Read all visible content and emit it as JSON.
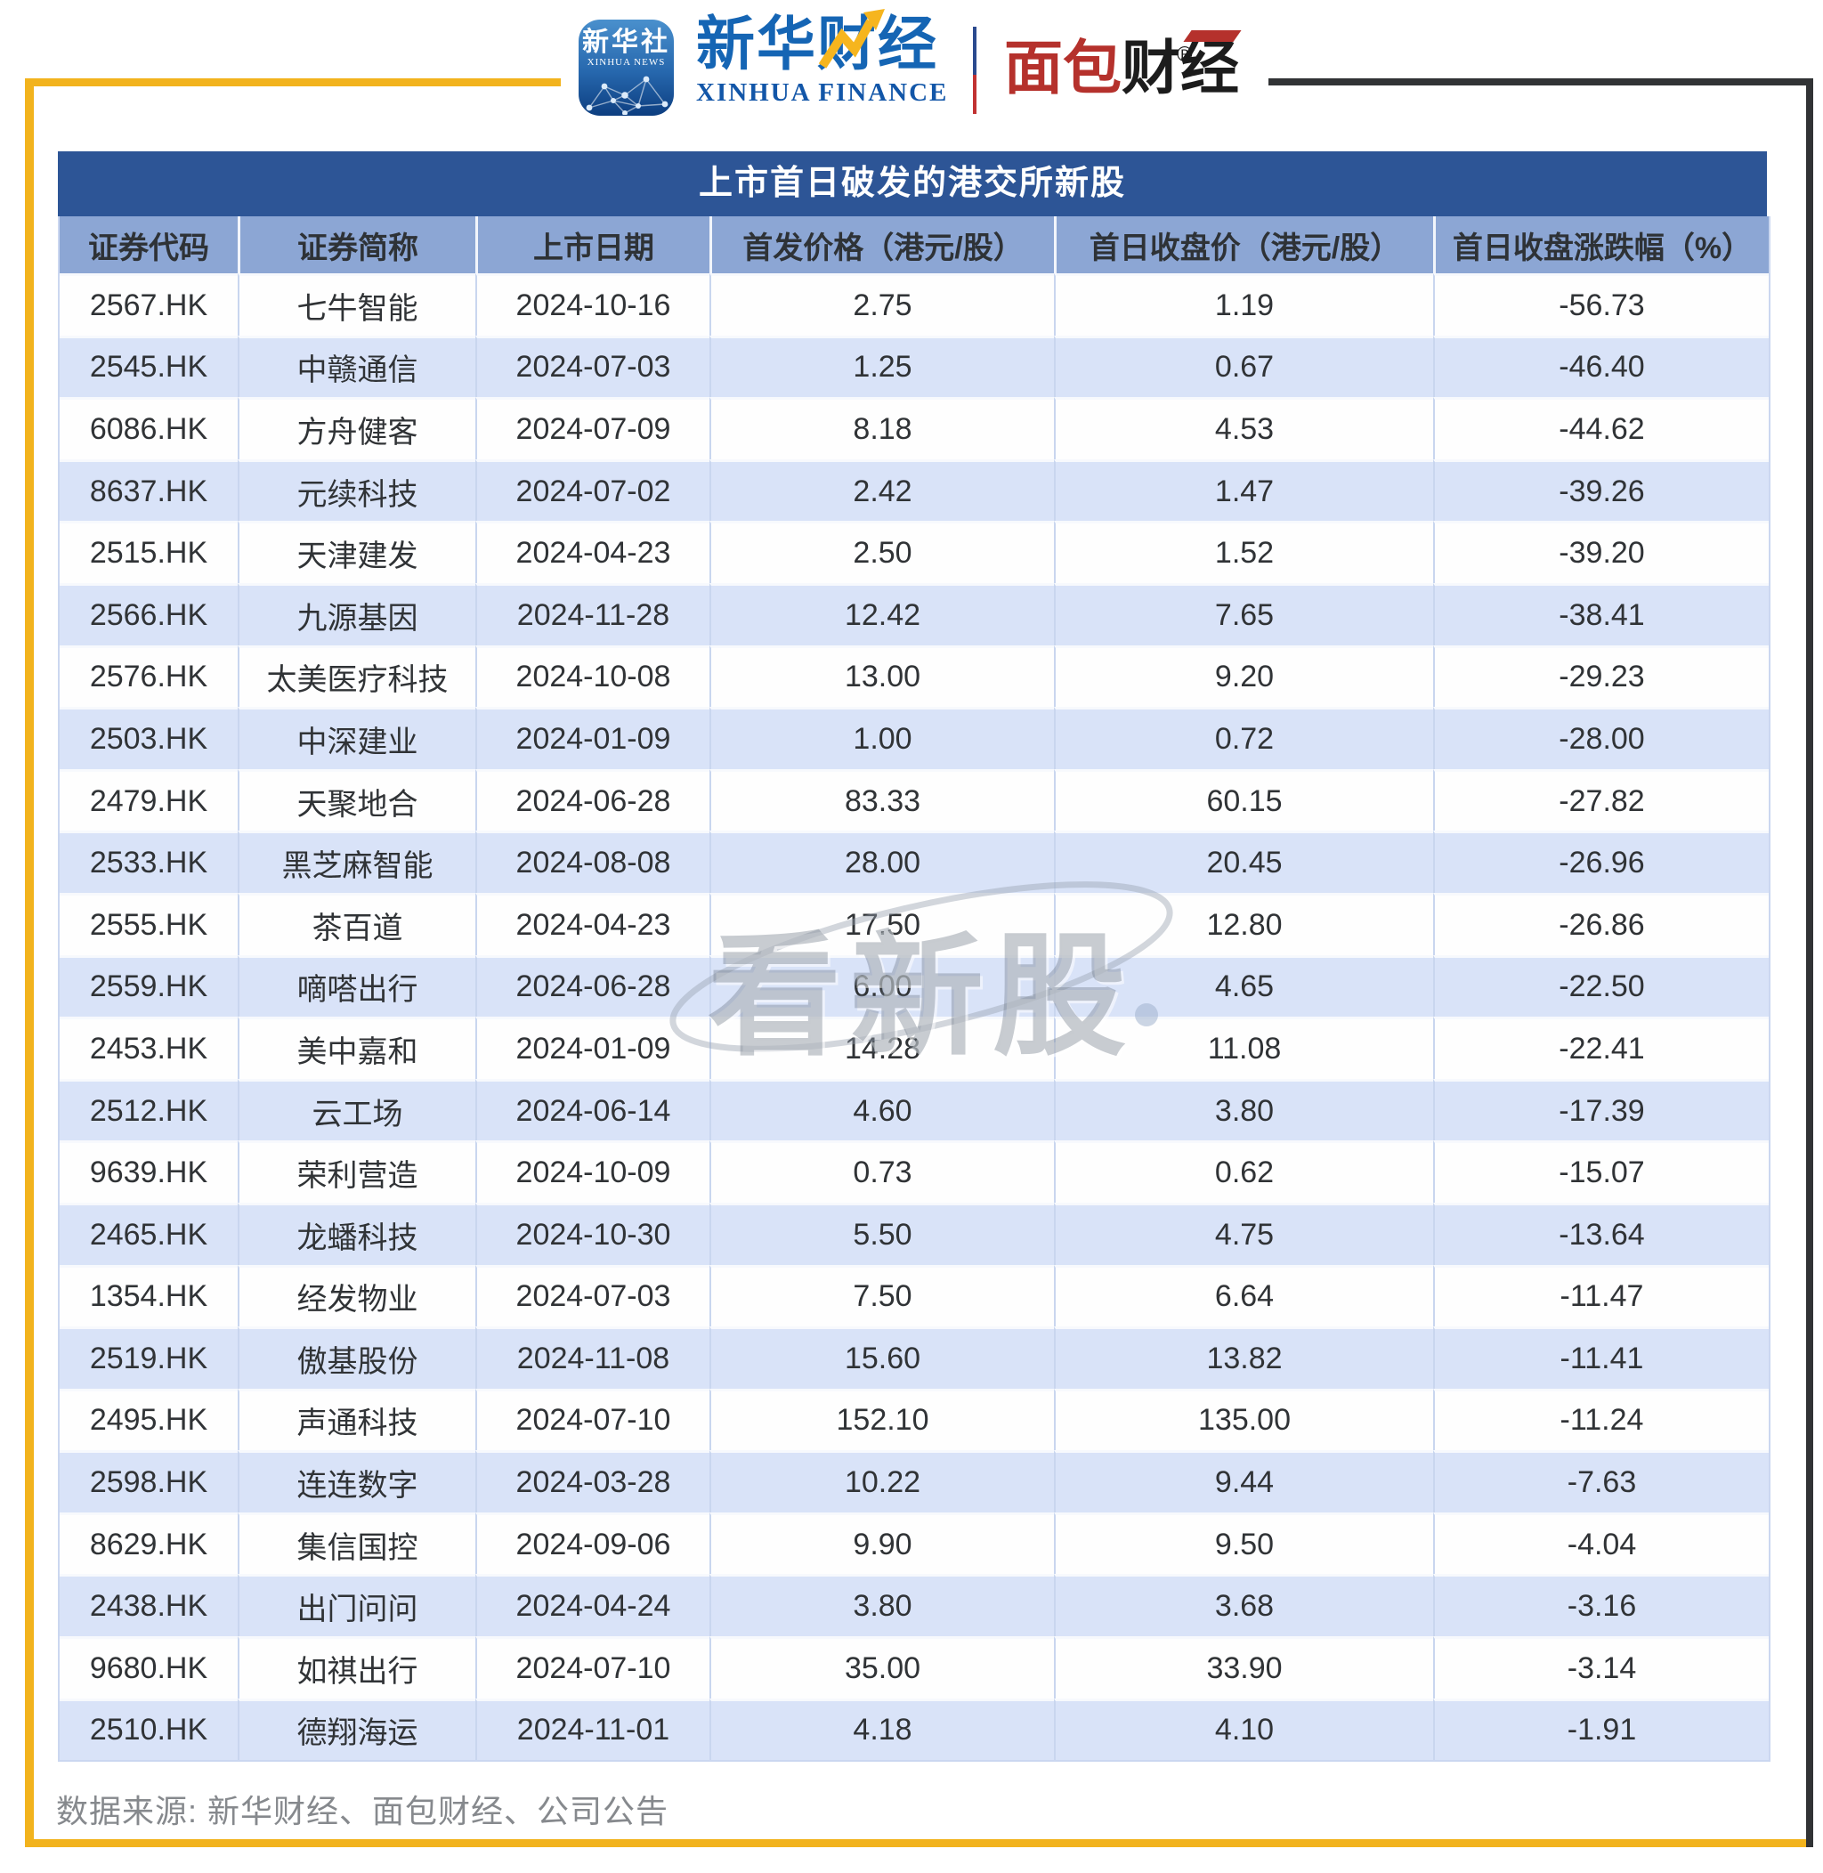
{
  "page": {
    "accent_color": "#f2b31d",
    "dark_frame_color": "#313335",
    "title_bar_color": "#2d5596",
    "header_row_color": "#8ca6d4",
    "alt_row_color": "#d9e3f8"
  },
  "header": {
    "xinhua_app_icon": {
      "line1": "新华社",
      "line2": "XINHUA NEWS"
    },
    "xinhua_finance_logo": {
      "cn": "新华财经",
      "en": "XINHUA FINANCE"
    },
    "mianbao_logo": {
      "part1": "面包",
      "part2": "财经",
      "reg_mark": "®"
    }
  },
  "table": {
    "title": "上市首日破发的港交所新股",
    "columns": [
      "证券代码",
      "证券简称",
      "上市日期",
      "首发价格（港元/股）",
      "首日收盘价（港元/股）",
      "首日收盘涨跌幅（%）"
    ],
    "rows": [
      [
        "2567.HK",
        "七牛智能",
        "2024-10-16",
        "2.75",
        "1.19",
        "-56.73"
      ],
      [
        "2545.HK",
        "中赣通信",
        "2024-07-03",
        "1.25",
        "0.67",
        "-46.40"
      ],
      [
        "6086.HK",
        "方舟健客",
        "2024-07-09",
        "8.18",
        "4.53",
        "-44.62"
      ],
      [
        "8637.HK",
        "元续科技",
        "2024-07-02",
        "2.42",
        "1.47",
        "-39.26"
      ],
      [
        "2515.HK",
        "天津建发",
        "2024-04-23",
        "2.50",
        "1.52",
        "-39.20"
      ],
      [
        "2566.HK",
        "九源基因",
        "2024-11-28",
        "12.42",
        "7.65",
        "-38.41"
      ],
      [
        "2576.HK",
        "太美医疗科技",
        "2024-10-08",
        "13.00",
        "9.20",
        "-29.23"
      ],
      [
        "2503.HK",
        "中深建业",
        "2024-01-09",
        "1.00",
        "0.72",
        "-28.00"
      ],
      [
        "2479.HK",
        "天聚地合",
        "2024-06-28",
        "83.33",
        "60.15",
        "-27.82"
      ],
      [
        "2533.HK",
        "黑芝麻智能",
        "2024-08-08",
        "28.00",
        "20.45",
        "-26.96"
      ],
      [
        "2555.HK",
        "茶百道",
        "2024-04-23",
        "17.50",
        "12.80",
        "-26.86"
      ],
      [
        "2559.HK",
        "嘀嗒出行",
        "2024-06-28",
        "6.00",
        "4.65",
        "-22.50"
      ],
      [
        "2453.HK",
        "美中嘉和",
        "2024-01-09",
        "14.28",
        "11.08",
        "-22.41"
      ],
      [
        "2512.HK",
        "云工场",
        "2024-06-14",
        "4.60",
        "3.80",
        "-17.39"
      ],
      [
        "9639.HK",
        "荣利营造",
        "2024-10-09",
        "0.73",
        "0.62",
        "-15.07"
      ],
      [
        "2465.HK",
        "龙蟠科技",
        "2024-10-30",
        "5.50",
        "4.75",
        "-13.64"
      ],
      [
        "1354.HK",
        "经发物业",
        "2024-07-03",
        "7.50",
        "6.64",
        "-11.47"
      ],
      [
        "2519.HK",
        "傲基股份",
        "2024-11-08",
        "15.60",
        "13.82",
        "-11.41"
      ],
      [
        "2495.HK",
        "声通科技",
        "2024-07-10",
        "152.10",
        "135.00",
        "-11.24"
      ],
      [
        "2598.HK",
        "连连数字",
        "2024-03-28",
        "10.22",
        "9.44",
        "-7.63"
      ],
      [
        "8629.HK",
        "集信国控",
        "2024-09-06",
        "9.90",
        "9.50",
        "-4.04"
      ],
      [
        "2438.HK",
        "出门问问",
        "2024-04-24",
        "3.80",
        "3.68",
        "-3.16"
      ],
      [
        "9680.HK",
        "如祺出行",
        "2024-07-10",
        "35.00",
        "33.90",
        "-3.14"
      ],
      [
        "2510.HK",
        "德翔海运",
        "2024-11-01",
        "4.18",
        "4.10",
        "-1.91"
      ]
    ]
  },
  "watermark": {
    "text": "看新股"
  },
  "footer": {
    "source": "数据来源: 新华财经、面包财经、公司公告"
  },
  "chart_data": {
    "type": "table",
    "title": "上市首日破发的港交所新股",
    "columns": [
      "证券代码",
      "证券简称",
      "上市日期",
      "首发价格（港元/股）",
      "首日收盘价（港元/股）",
      "首日收盘涨跌幅（%）"
    ],
    "rows": [
      [
        "2567.HK",
        "七牛智能",
        "2024-10-16",
        2.75,
        1.19,
        -56.73
      ],
      [
        "2545.HK",
        "中赣通信",
        "2024-07-03",
        1.25,
        0.67,
        -46.4
      ],
      [
        "6086.HK",
        "方舟健客",
        "2024-07-09",
        8.18,
        4.53,
        -44.62
      ],
      [
        "8637.HK",
        "元续科技",
        "2024-07-02",
        2.42,
        1.47,
        -39.26
      ],
      [
        "2515.HK",
        "天津建发",
        "2024-04-23",
        2.5,
        1.52,
        -39.2
      ],
      [
        "2566.HK",
        "九源基因",
        "2024-11-28",
        12.42,
        7.65,
        -38.41
      ],
      [
        "2576.HK",
        "太美医疗科技",
        "2024-10-08",
        13.0,
        9.2,
        -29.23
      ],
      [
        "2503.HK",
        "中深建业",
        "2024-01-09",
        1.0,
        0.72,
        -28.0
      ],
      [
        "2479.HK",
        "天聚地合",
        "2024-06-28",
        83.33,
        60.15,
        -27.82
      ],
      [
        "2533.HK",
        "黑芝麻智能",
        "2024-08-08",
        28.0,
        20.45,
        -26.96
      ],
      [
        "2555.HK",
        "茶百道",
        "2024-04-23",
        17.5,
        12.8,
        -26.86
      ],
      [
        "2559.HK",
        "嘀嗒出行",
        "2024-06-28",
        6.0,
        4.65,
        -22.5
      ],
      [
        "2453.HK",
        "美中嘉和",
        "2024-01-09",
        14.28,
        11.08,
        -22.41
      ],
      [
        "2512.HK",
        "云工场",
        "2024-06-14",
        4.6,
        3.8,
        -17.39
      ],
      [
        "9639.HK",
        "荣利营造",
        "2024-10-09",
        0.73,
        0.62,
        -15.07
      ],
      [
        "2465.HK",
        "龙蟠科技",
        "2024-10-30",
        5.5,
        4.75,
        -13.64
      ],
      [
        "1354.HK",
        "经发物业",
        "2024-07-03",
        7.5,
        6.64,
        -11.47
      ],
      [
        "2519.HK",
        "傲基股份",
        "2024-11-08",
        15.6,
        13.82,
        -11.41
      ],
      [
        "2495.HK",
        "声通科技",
        "2024-07-10",
        152.1,
        135.0,
        -11.24
      ],
      [
        "2598.HK",
        "连连数字",
        "2024-03-28",
        10.22,
        9.44,
        -7.63
      ],
      [
        "8629.HK",
        "集信国控",
        "2024-09-06",
        9.9,
        9.5,
        -4.04
      ],
      [
        "2438.HK",
        "出门问问",
        "2024-04-24",
        3.8,
        3.68,
        -3.16
      ],
      [
        "9680.HK",
        "如祺出行",
        "2024-07-10",
        35.0,
        33.9,
        -3.14
      ],
      [
        "2510.HK",
        "德翔海运",
        "2024-11-01",
        4.18,
        4.1,
        -1.91
      ]
    ]
  }
}
